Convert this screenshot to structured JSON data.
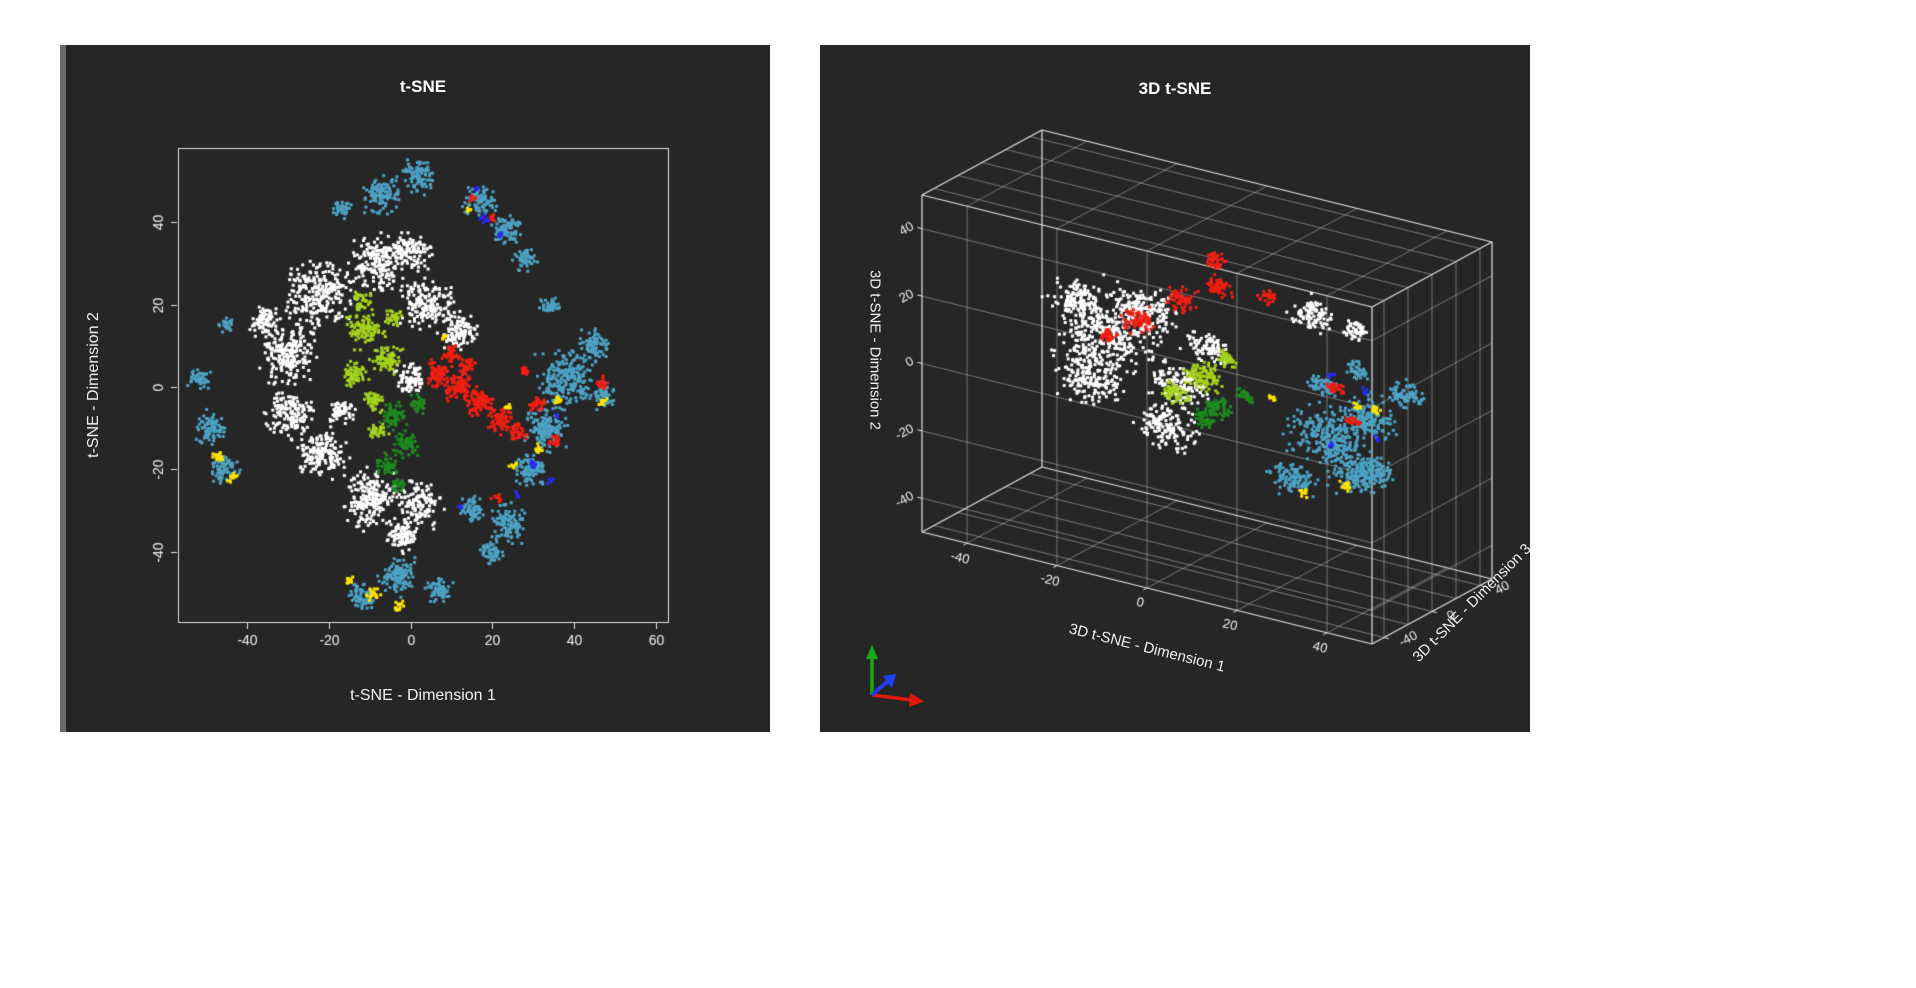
{
  "page": {
    "background": "#ffffff"
  },
  "style": {
    "panel_bg": "#262626",
    "panel_edge": "#6a6a6a",
    "axis_color": "#e2e2e2",
    "grid_color": "rgba(235,235,235,0.5)",
    "text_color": "#f0f0f0",
    "title_color": "#ffffff",
    "triad_colors": {
      "up": "#18a818",
      "right": "#e01810",
      "depth": "#2040ff"
    }
  },
  "chart_data": [
    {
      "type": "scatter",
      "title": "t-SNE",
      "xlabel": "t-SNE - Dimension 1",
      "ylabel": "t-SNE - Dimension 2",
      "xlim": [
        -57,
        63
      ],
      "ylim": [
        -57,
        58
      ],
      "xticks": [
        -40,
        -20,
        0,
        20,
        40,
        60
      ],
      "yticks": [
        -40,
        -20,
        0,
        20,
        40
      ],
      "grid": false,
      "legend": "none",
      "marker_px": 3,
      "clusters_format": "[center_x, center_y, radius, n_points]",
      "series": [
        {
          "name": "cluster-white",
          "color": "#ffffff",
          "clusters": [
            [
              -22,
              22,
              11,
              260
            ],
            [
              -8,
              30,
              9,
              200
            ],
            [
              -30,
              8,
              9,
              200
            ],
            [
              -30,
              -6,
              8,
              160
            ],
            [
              -22,
              -16,
              8,
              170
            ],
            [
              -10,
              -27,
              9,
              200
            ],
            [
              2,
              -28,
              7,
              130
            ],
            [
              4,
              20,
              8,
              170
            ],
            [
              12,
              14,
              6,
              110
            ],
            [
              0,
              33,
              6,
              110
            ],
            [
              -36,
              16,
              5,
              80
            ],
            [
              0,
              2,
              5,
              80
            ],
            [
              -2,
              -36,
              5,
              90
            ],
            [
              -17,
              -6,
              4,
              60
            ]
          ]
        },
        {
          "name": "cluster-cyan",
          "color": "#4da2c4",
          "clusters": [
            [
              -7,
              47,
              6,
              120
            ],
            [
              2,
              51,
              5,
              90
            ],
            [
              -17,
              43,
              3,
              40
            ],
            [
              17,
              45,
              5,
              90
            ],
            [
              24,
              38,
              4.5,
              80
            ],
            [
              28,
              31,
              3.5,
              50
            ],
            [
              34,
              20,
              3,
              40
            ],
            [
              38,
              2,
              9,
              220
            ],
            [
              33,
              -10,
              7,
              150
            ],
            [
              45,
              10,
              5,
              80
            ],
            [
              47,
              -2,
              4,
              60
            ],
            [
              29,
              -20,
              5,
              90
            ],
            [
              24,
              -33,
              6,
              110
            ],
            [
              15,
              -30,
              4,
              60
            ],
            [
              20,
              -40,
              4,
              55
            ],
            [
              -3,
              -46,
              6,
              110
            ],
            [
              7,
              -49,
              4,
              60
            ],
            [
              -12,
              -51,
              4,
              60
            ],
            [
              -49,
              -10,
              5,
              90
            ],
            [
              -46,
              -20,
              4.5,
              70
            ],
            [
              -52,
              2,
              3.5,
              45
            ],
            [
              -45,
              15,
              2.5,
              25
            ]
          ]
        },
        {
          "name": "cluster-light-green",
          "color": "#a6d21d",
          "clusters": [
            [
              -11,
              14,
              5.5,
              110
            ],
            [
              -6,
              7,
              4.5,
              80
            ],
            [
              -14,
              3,
              4,
              60
            ],
            [
              -9,
              -3,
              3.5,
              50
            ],
            [
              -4,
              17,
              3,
              35
            ],
            [
              -12,
              21,
              3,
              35
            ],
            [
              -8,
              -11,
              3,
              35
            ]
          ]
        },
        {
          "name": "cluster-dark-green",
          "color": "#1f8a1f",
          "clusters": [
            [
              -4,
              -7,
              4,
              65
            ],
            [
              -1,
              -14,
              4,
              60
            ],
            [
              -6,
              -19,
              3.5,
              45
            ],
            [
              2,
              -4,
              3,
              35
            ],
            [
              -3,
              -24,
              2.5,
              25
            ]
          ]
        },
        {
          "name": "cluster-red",
          "color": "#f01f13",
          "clusters": [
            [
              7,
              3,
              4,
              70
            ],
            [
              12,
              0,
              4.5,
              90
            ],
            [
              17,
              -4,
              4.5,
              90
            ],
            [
              22,
              -8,
              4,
              70
            ],
            [
              26,
              -11,
              3,
              40
            ],
            [
              10,
              8,
              3,
              40
            ],
            [
              14,
              5,
              3,
              40
            ],
            [
              31,
              -4,
              2.5,
              30
            ],
            [
              35,
              -13,
              2,
              20
            ],
            [
              28,
              4,
              2,
              20
            ],
            [
              47,
              1,
              2,
              22
            ],
            [
              15,
              46,
              1.5,
              10
            ],
            [
              20,
              41,
              1.2,
              8
            ],
            [
              21,
              -27,
              1.5,
              10
            ]
          ]
        },
        {
          "name": "cluster-yellow",
          "color": "#ffe300",
          "clusters": [
            [
              -47,
              -17,
              2.2,
              20
            ],
            [
              -44,
              -22,
              1.8,
              14
            ],
            [
              -9,
              -50,
              2.2,
              20
            ],
            [
              -3,
              -53,
              1.8,
              14
            ],
            [
              -15,
              -47,
              1.5,
              10
            ],
            [
              31,
              -15,
              1.8,
              14
            ],
            [
              36,
              -3,
              1.5,
              10
            ],
            [
              47,
              -4,
              1.8,
              12
            ],
            [
              25,
              -19,
              1.5,
              9
            ],
            [
              14,
              43,
              1.2,
              7
            ],
            [
              24,
              -5,
              1.2,
              8
            ],
            [
              8,
              12,
              1.2,
              7
            ]
          ]
        },
        {
          "name": "cluster-blue",
          "color": "#2929ff",
          "clusters": [
            [
              18,
              41,
              1.5,
              8
            ],
            [
              22,
              37,
              1.2,
              6
            ],
            [
              30,
              -19,
              1.5,
              8
            ],
            [
              34,
              -23,
              1.2,
              5
            ],
            [
              26,
              -26,
              1.2,
              5
            ],
            [
              12,
              -29,
              1,
              4
            ],
            [
              36,
              -7,
              1,
              4
            ],
            [
              16,
              48,
              1,
              4
            ]
          ]
        }
      ]
    },
    {
      "type": "scatter3d",
      "title": "3D t-SNE",
      "xlabel": "3D t-SNE - Dimension 1",
      "ylabel": "3D t-SNE - Dimension 2",
      "zlabel": "3D t-SNE - Dimension 3",
      "xlim": [
        -50,
        50
      ],
      "ylim": [
        -50,
        50
      ],
      "zlim": [
        -50,
        50
      ],
      "xticks": [
        -40,
        -20,
        0,
        20,
        40
      ],
      "yticks": [
        40,
        20,
        0,
        -20,
        -40
      ],
      "zticks": [
        -40,
        0,
        40
      ],
      "gridticks": [
        -40,
        -20,
        0,
        20,
        40
      ],
      "grid": true,
      "legend": "none",
      "marker_px": 3,
      "clusters_format": "[center_x(dim1), center_y(dim2 vertical), center_z(dim3), radius, n_points]",
      "series": [
        {
          "name": "cluster-white",
          "color": "#ffffff",
          "clusters": [
            [
              -22,
              8,
              0,
              14,
              320
            ],
            [
              -12,
              20,
              -8,
              10,
              200
            ],
            [
              -28,
              -8,
              8,
              10,
              190
            ],
            [
              -5,
              0,
              -5,
              8,
              140
            ],
            [
              -10,
              -16,
              5,
              8,
              150
            ],
            [
              -30,
              15,
              5,
              8,
              130
            ],
            [
              22,
              28,
              5,
              6,
              90
            ],
            [
              30,
              25,
              10,
              4,
              50
            ],
            [
              0,
              12,
              0,
              6,
              90
            ]
          ]
        },
        {
          "name": "cluster-cyan",
          "color": "#4da2c4",
          "clusters": [
            [
              25,
              -8,
              8,
              11,
              260
            ],
            [
              35,
              2,
              2,
              8,
              160
            ],
            [
              30,
              -18,
              12,
              8,
              150
            ],
            [
              42,
              10,
              8,
              5,
              80
            ],
            [
              18,
              -22,
              4,
              6,
              100
            ],
            [
              38,
              -12,
              -2,
              5,
              70
            ],
            [
              33,
              15,
              2,
              3.5,
              45
            ],
            [
              22,
              5,
              14,
              4,
              55
            ]
          ]
        },
        {
          "name": "cluster-light-green",
          "color": "#a6d21d",
          "clusters": [
            [
              -2,
              2,
              4,
              5.5,
              100
            ],
            [
              -7,
              -4,
              0,
              4,
              55
            ],
            [
              3,
              8,
              6,
              3,
              35
            ]
          ]
        },
        {
          "name": "cluster-dark-green",
          "color": "#1f8a1f",
          "clusters": [
            [
              1,
              -7,
              5,
              4.5,
              70
            ],
            [
              -3,
              -12,
              8,
              3.5,
              40
            ],
            [
              6,
              -2,
              8,
              3,
              30
            ]
          ]
        },
        {
          "name": "cluster-red",
          "color": "#f01f13",
          "clusters": [
            [
              -14,
              16,
              -5,
              5,
              80
            ],
            [
              -6,
              24,
              0,
              4.5,
              70
            ],
            [
              2,
              30,
              3,
              4,
              60
            ],
            [
              2,
              38,
              0,
              3,
              40
            ],
            [
              12,
              30,
              5,
              2.5,
              28
            ],
            [
              26,
              6,
              10,
              2.5,
              28
            ],
            [
              31,
              -1,
              6,
              2,
              20
            ],
            [
              -20,
              10,
              -8,
              3,
              35
            ]
          ]
        },
        {
          "name": "cluster-yellow",
          "color": "#ffe300",
          "clusters": [
            [
              28,
              -22,
              10,
              2.2,
              16
            ],
            [
              20,
              -26,
              6,
              1.8,
              12
            ],
            [
              36,
              4,
              6,
              1.8,
              12
            ],
            [
              14,
              1,
              2,
              1.3,
              7
            ],
            [
              30,
              2,
              12,
              1.5,
              9
            ]
          ]
        },
        {
          "name": "cluster-blue",
          "color": "#2929ff",
          "clusters": [
            [
              34,
              9,
              4,
              1.5,
              7
            ],
            [
              37,
              -3,
              2,
              1.2,
              5
            ],
            [
              27,
              12,
              2,
              1.2,
              5
            ],
            [
              24,
              -12,
              14,
              1,
              4
            ]
          ]
        }
      ]
    }
  ]
}
